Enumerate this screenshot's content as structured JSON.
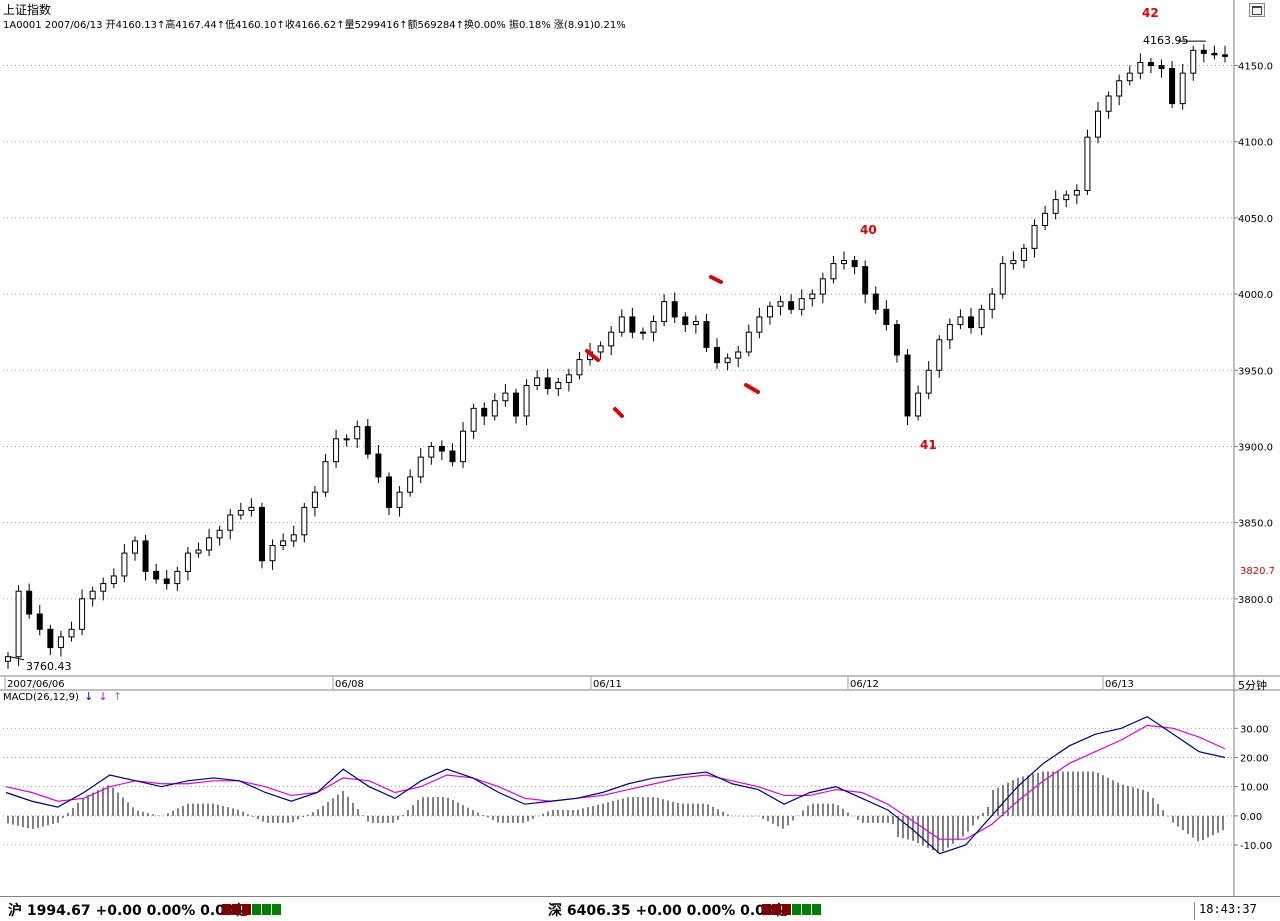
{
  "window": {
    "title": "上证指数",
    "info_line": "1A0001 2007/06/13 开4160.13↑高4167.44↑低4160.10↑收4166.62↑量5299416↑额569284↑换0.00% 振0.18% 涨(8.91)0.21%",
    "period_label": "5分钟"
  },
  "price_axis": {
    "labels": [
      "4150.0",
      "4100.0",
      "4050.0",
      "4000.0",
      "3950.0",
      "3900.0",
      "3850.0",
      "3800.0"
    ],
    "levels": [
      4150,
      4100,
      4050,
      4000,
      3950,
      3900,
      3850,
      3800
    ],
    "reference_label": "3820.7",
    "reference_color": "#e00000"
  },
  "date_axis": {
    "labels": [
      "2007/06/06",
      "06/08",
      "06/11",
      "06/12",
      "06/13"
    ]
  },
  "annotations": {
    "high_value": "4163.95",
    "low_value": "3760.43",
    "wave_labels": [
      "40",
      "41",
      "42"
    ],
    "wave_label_color": "#e00000",
    "marker_color": "#e00000"
  },
  "macd": {
    "label": "MACD(26,12,9)",
    "arrow_colors": [
      "#0000cc",
      "#cc00cc",
      "#888888"
    ],
    "axis_labels": [
      "30.00",
      "20.00",
      "10.00",
      "0.00",
      "-10.00"
    ],
    "axis_levels": [
      30,
      20,
      10,
      0,
      -10
    ],
    "dif_color": "#000080",
    "dea_color": "#e000e0"
  },
  "status": {
    "sh_label": "沪 1994.67 +0.00 0.00% 0.00亿",
    "sz_label": "深 6406.35 +0.00 0.00% 0.00亿",
    "clock": "18:43:37",
    "up_color": "#008000",
    "down_color": "#800000"
  },
  "chart_data": {
    "type": "candlestick",
    "title": "上证指数",
    "y_range": [
      3750,
      4172
    ],
    "ohlc_closes": [
      3762,
      3805,
      3790,
      3780,
      3768,
      3775,
      3780,
      3800,
      3805,
      3810,
      3815,
      3830,
      3838,
      3818,
      3813,
      3810,
      3818,
      3830,
      3832,
      3840,
      3845,
      3855,
      3858,
      3860,
      3825,
      3835,
      3838,
      3842,
      3860,
      3870,
      3890,
      3905,
      3905,
      3913,
      3895,
      3880,
      3860,
      3870,
      3880,
      3893,
      3900,
      3897,
      3890,
      3910,
      3925,
      3920,
      3930,
      3935,
      3920,
      3940,
      3945,
      3938,
      3942,
      3947,
      3957,
      3962,
      3966,
      3975,
      3985,
      3975,
      3975,
      3982,
      3995,
      3985,
      3980,
      3982,
      3965,
      3955,
      3958,
      3962,
      3975,
      3985,
      3992,
      3995,
      3990,
      3997,
      4000,
      4010,
      4020,
      4022,
      4018,
      4000,
      3990,
      3980,
      3960,
      3920,
      3935,
      3950,
      3970,
      3980,
      3985,
      3978,
      3990,
      4000,
      4020,
      4022,
      4030,
      4045,
      4053,
      4062,
      4065,
      4068,
      4103,
      4120,
      4130,
      4140,
      4145,
      4152,
      4150,
      4148,
      4125,
      4145,
      4160,
      4158,
      4157,
      4156
    ],
    "macd_dif": [
      8,
      5,
      3,
      8,
      14,
      12,
      10,
      12,
      13,
      12,
      8,
      5,
      8,
      16,
      10,
      6,
      12,
      16,
      13,
      8,
      4,
      5,
      6,
      8,
      11,
      13,
      14,
      15,
      11,
      9,
      4,
      8,
      10,
      6,
      2,
      -5,
      -13,
      -10,
      0,
      10,
      18,
      24,
      28,
      30,
      34,
      28,
      22,
      20
    ],
    "macd_dea": [
      10,
      8,
      5,
      6,
      10,
      12,
      11,
      11,
      12,
      12,
      10,
      7,
      8,
      13,
      12,
      8,
      10,
      14,
      13,
      10,
      6,
      5,
      6,
      7,
      9,
      11,
      13,
      14,
      12,
      10,
      7,
      7,
      9,
      8,
      4,
      -2,
      -8,
      -8,
      -3,
      5,
      12,
      18,
      22,
      26,
      31,
      30,
      27,
      23
    ],
    "macd_range": [
      -22,
      38
    ]
  }
}
